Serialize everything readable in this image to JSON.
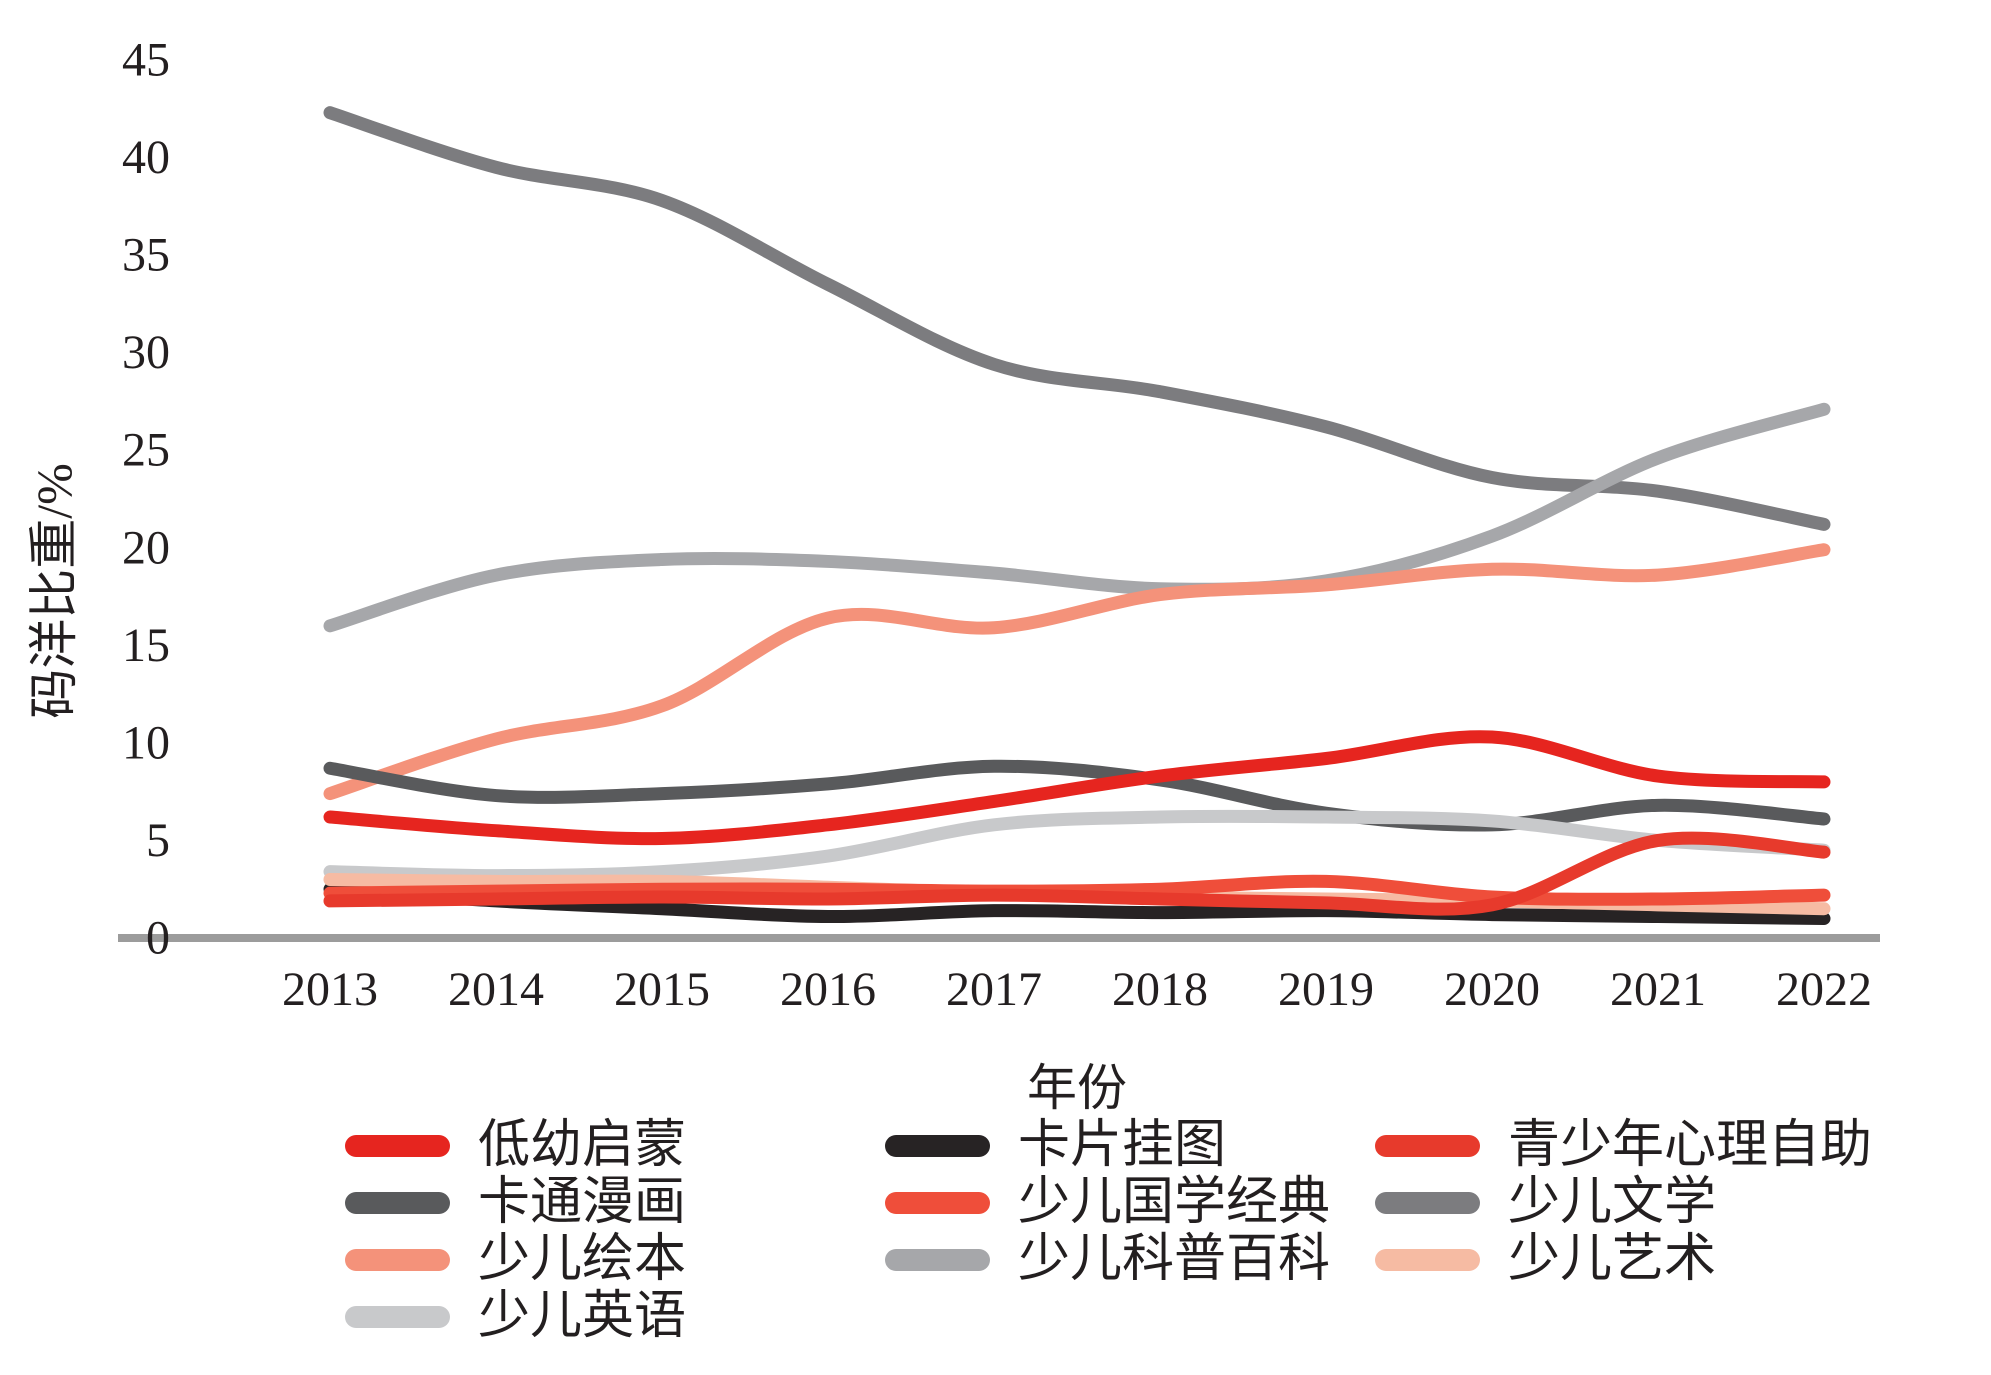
{
  "chart_data": {
    "type": "line",
    "title": "",
    "x": [
      2013,
      2014,
      2015,
      2016,
      2017,
      2018,
      2019,
      2020,
      2021,
      2022
    ],
    "xlabel": "年份",
    "ylabel": "码洋比重/%",
    "ylim": [
      0,
      45
    ],
    "ytick_step": 5,
    "yticks": [
      0,
      5,
      10,
      15,
      20,
      25,
      30,
      35,
      40,
      45
    ],
    "grid": false,
    "legend_position": "bottom",
    "series": [
      {
        "name": "低幼启蒙",
        "color": "#e6251f",
        "values": [
          6.2,
          5.5,
          5.1,
          5.8,
          7.0,
          8.3,
          9.2,
          10.3,
          8.3,
          8.0
        ]
      },
      {
        "name": "卡片挂图",
        "color": "#272324",
        "values": [
          2.5,
          1.9,
          1.5,
          1.1,
          1.4,
          1.3,
          1.4,
          1.2,
          1.1,
          1.0
        ]
      },
      {
        "name": "青少年心理自助",
        "color": "#e73a2c",
        "values": [
          1.9,
          2.0,
          2.1,
          2.0,
          2.2,
          2.0,
          1.8,
          1.7,
          5.0,
          4.4
        ]
      },
      {
        "name": "卡通漫画",
        "color": "#595a5c",
        "values": [
          8.7,
          7.3,
          7.4,
          7.9,
          8.8,
          8.1,
          6.4,
          5.8,
          6.8,
          6.1
        ]
      },
      {
        "name": "少儿国学经典",
        "color": "#ef4e3a",
        "values": [
          2.3,
          2.4,
          2.5,
          2.5,
          2.4,
          2.5,
          2.9,
          2.1,
          2.0,
          2.2
        ]
      },
      {
        "name": "少儿文学",
        "color": "#7c7c7f",
        "values": [
          42.3,
          39.5,
          37.8,
          33.5,
          29.4,
          28.0,
          26.2,
          23.6,
          22.9,
          21.2
        ]
      },
      {
        "name": "少儿绘本",
        "color": "#f4927a",
        "values": [
          7.4,
          10.2,
          11.9,
          16.4,
          15.9,
          17.6,
          18.1,
          18.9,
          18.6,
          19.9
        ]
      },
      {
        "name": "少儿科普百科",
        "color": "#a6a7aa",
        "values": [
          16.0,
          18.6,
          19.4,
          19.3,
          18.7,
          17.9,
          18.3,
          20.6,
          24.6,
          27.1
        ]
      },
      {
        "name": "少儿艺术",
        "color": "#f6bba3",
        "values": [
          3.0,
          2.9,
          2.9,
          2.6,
          2.3,
          2.1,
          2.0,
          1.9,
          1.7,
          1.5
        ]
      },
      {
        "name": "少儿英语",
        "color": "#c8c9cb",
        "values": [
          3.4,
          3.2,
          3.4,
          4.2,
          5.8,
          6.2,
          6.2,
          6.0,
          5.0,
          4.5
        ]
      }
    ],
    "z_order": [
      "少儿文学",
      "少儿科普百科",
      "少儿绘本",
      "卡通漫画",
      "少儿英语",
      "卡片挂图",
      "少儿艺术",
      "少儿国学经典",
      "青少年心理自助",
      "低幼启蒙"
    ]
  },
  "colors": {
    "axis_line": "#9c9c9c",
    "text": "#231f20",
    "background": "#ffffff"
  }
}
